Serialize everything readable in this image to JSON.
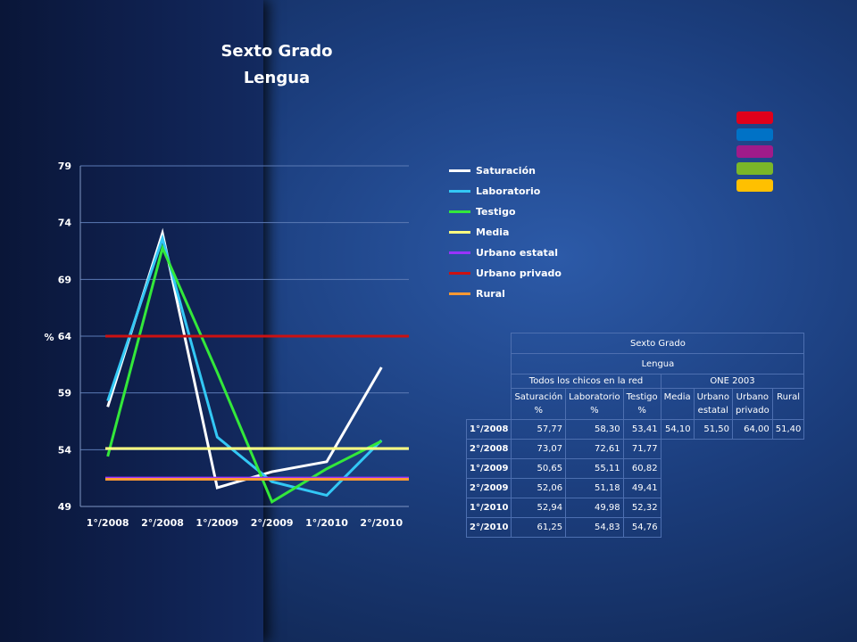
{
  "chart_data": {
    "type": "line",
    "title": "Sexto Grado",
    "subtitle": "Lengua",
    "ylabel": "%",
    "ylim": [
      49,
      79
    ],
    "yticks": [
      49,
      54,
      59,
      64,
      69,
      74,
      79
    ],
    "categories": [
      "1°/2008",
      "2°/2008",
      "1°/2009",
      "2°/2009",
      "1°/2010",
      "2°/2010"
    ],
    "legend_position": "right",
    "grid": true,
    "series": [
      {
        "name": "Saturación",
        "color": "#ffffff",
        "values": [
          57.77,
          73.07,
          50.65,
          52.06,
          52.94,
          61.25
        ]
      },
      {
        "name": "Laboratorio",
        "color": "#33c8f5",
        "values": [
          58.3,
          72.61,
          55.11,
          51.18,
          49.98,
          54.83
        ]
      },
      {
        "name": "Testigo",
        "color": "#33e83a",
        "values": [
          53.41,
          71.77,
          60.82,
          49.41,
          52.32,
          54.76
        ]
      },
      {
        "name": "Media",
        "color": "#ffff80",
        "values": [
          54.1,
          54.1,
          54.1,
          54.1,
          54.1,
          54.1
        ]
      },
      {
        "name": "Urbano estatal",
        "color": "#9933ff",
        "values": [
          51.5,
          51.5,
          51.5,
          51.5,
          51.5,
          51.5
        ]
      },
      {
        "name": "Urbano privado",
        "color": "#cc1111",
        "values": [
          64.0,
          64.0,
          64.0,
          64.0,
          64.0,
          64.0
        ]
      },
      {
        "name": "Rural",
        "color": "#ff9933",
        "values": [
          51.4,
          51.4,
          51.4,
          51.4,
          51.4,
          51.4
        ]
      }
    ]
  },
  "color_blocks": [
    "#e0001b",
    "#0072c6",
    "#a01b8a",
    "#7ab628",
    "#ffc000"
  ],
  "table": {
    "title": "Sexto Grado",
    "subtitle": "Lengua",
    "group1": "Todos los chicos en la red",
    "group2": "ONE 2003",
    "cols": [
      "Saturación\n%",
      "Laboratorio\n%",
      "Testigo\n%",
      "Media",
      "Urbano\nestatal",
      "Urbano\nprivado",
      "Rural"
    ],
    "rows": [
      {
        "label": "1°/2008",
        "values": [
          "57,77",
          "58,30",
          "53,41",
          "54,10",
          "51,50",
          "64,00",
          "51,40"
        ]
      },
      {
        "label": "2°/2008",
        "values": [
          "73,07",
          "72,61",
          "71,77"
        ]
      },
      {
        "label": "1°/2009",
        "values": [
          "50,65",
          "55,11",
          "60,82"
        ]
      },
      {
        "label": "2°/2009",
        "values": [
          "52,06",
          "51,18",
          "49,41"
        ]
      },
      {
        "label": "1°/2010",
        "values": [
          "52,94",
          "49,98",
          "52,32"
        ]
      },
      {
        "label": "2°/2010",
        "values": [
          "61,25",
          "54,83",
          "54,76"
        ]
      }
    ]
  }
}
